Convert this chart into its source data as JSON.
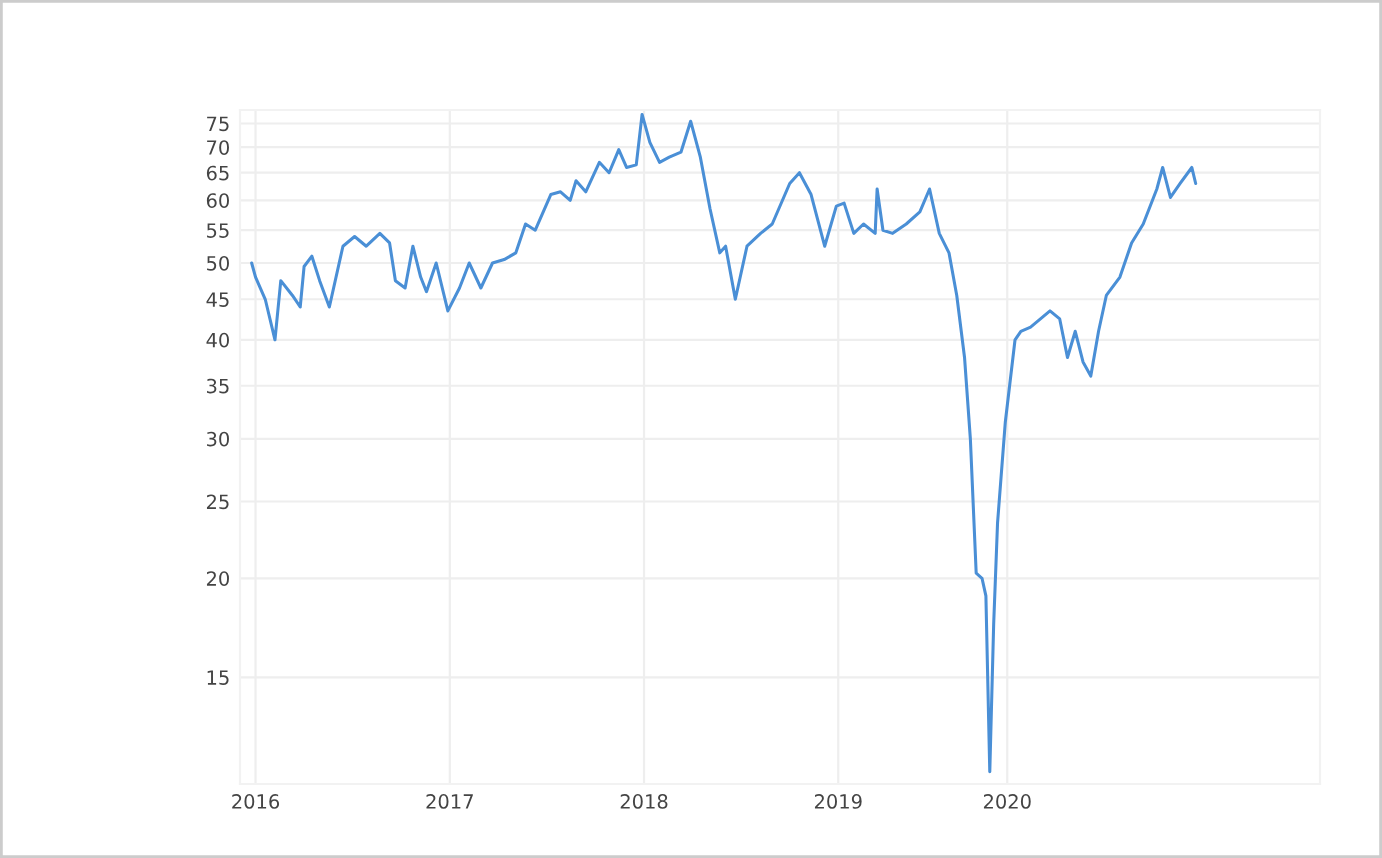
{
  "chart_data": {
    "type": "line",
    "log": true,
    "grid": true,
    "line_style": "solid",
    "marker": "none",
    "xlim": [
      2015.92,
      2021.48
    ],
    "xticks": [
      2016,
      2017,
      2018,
      2019,
      {
        "value": 2019.87,
        "label": "2020"
      }
    ],
    "ylim": [
      11,
      78
    ],
    "yticks": [
      15,
      20,
      25,
      30,
      35,
      40,
      45,
      50,
      55,
      60,
      65,
      70,
      75
    ],
    "series": [
      {
        "color": "#4a8fd6",
        "x": [
          2015.98,
          2016.0,
          2016.05,
          2016.1,
          2016.13,
          2016.19,
          2016.23,
          2016.25,
          2016.29,
          2016.33,
          2016.38,
          2016.45,
          2016.51,
          2016.57,
          2016.64,
          2016.69,
          2016.72,
          2016.77,
          2016.81,
          2016.85,
          2016.88,
          2016.93,
          2016.99,
          2017.05,
          2017.1,
          2017.16,
          2017.22,
          2017.28,
          2017.34,
          2017.39,
          2017.44,
          2017.52,
          2017.57,
          2017.62,
          2017.65,
          2017.7,
          2017.77,
          2017.82,
          2017.87,
          2017.91,
          2017.96,
          2017.99,
          2018.03,
          2018.08,
          2018.13,
          2018.19,
          2018.24,
          2018.29,
          2018.34,
          2018.39,
          2018.42,
          2018.47,
          2018.53,
          2018.6,
          2018.66,
          2018.75,
          2018.8,
          2018.86,
          2018.93,
          2018.99,
          2019.03,
          2019.08,
          2019.13,
          2019.19,
          2019.2,
          2019.23,
          2019.28,
          2019.35,
          2019.42,
          2019.47,
          2019.52,
          2019.57,
          2019.61,
          2019.65,
          2019.68,
          2019.71,
          2019.74,
          2019.76,
          2019.78,
          2019.8,
          2019.82,
          2019.86,
          2019.91,
          2019.94,
          2019.99,
          2020.09,
          2020.14,
          2020.18,
          2020.22,
          2020.26,
          2020.3,
          2020.34,
          2020.38,
          2020.45,
          2020.51,
          2020.57,
          2020.64,
          2020.67,
          2020.71,
          2020.76,
          2020.82,
          2020.84
        ],
        "values": [
          50,
          48,
          45,
          40,
          47.5,
          45.5,
          44,
          49.5,
          51,
          47.5,
          44,
          52.5,
          54,
          52.5,
          54.5,
          53,
          47.5,
          46.5,
          52.5,
          48,
          46,
          50,
          43.5,
          46.5,
          50,
          46.5,
          50,
          50.5,
          51.5,
          56,
          55,
          61,
          61.5,
          60,
          63.5,
          61.5,
          67,
          65,
          69.5,
          66,
          66.5,
          77,
          71,
          67,
          68,
          69,
          75.5,
          68,
          58.5,
          51.5,
          52.5,
          45,
          52.5,
          54.5,
          56,
          63,
          65,
          61,
          52.5,
          59,
          59.5,
          54.5,
          56,
          54.5,
          62,
          55,
          54.5,
          56,
          58,
          62,
          54.5,
          51.5,
          45.5,
          38,
          30,
          20.3,
          20,
          19,
          11.4,
          17.5,
          23.5,
          31.5,
          40,
          41,
          41.5,
          43.5,
          42.5,
          38,
          41,
          37.5,
          36,
          41,
          45.5,
          48,
          53,
          56,
          62,
          66,
          60.5,
          63,
          66,
          63
        ]
      }
    ]
  }
}
